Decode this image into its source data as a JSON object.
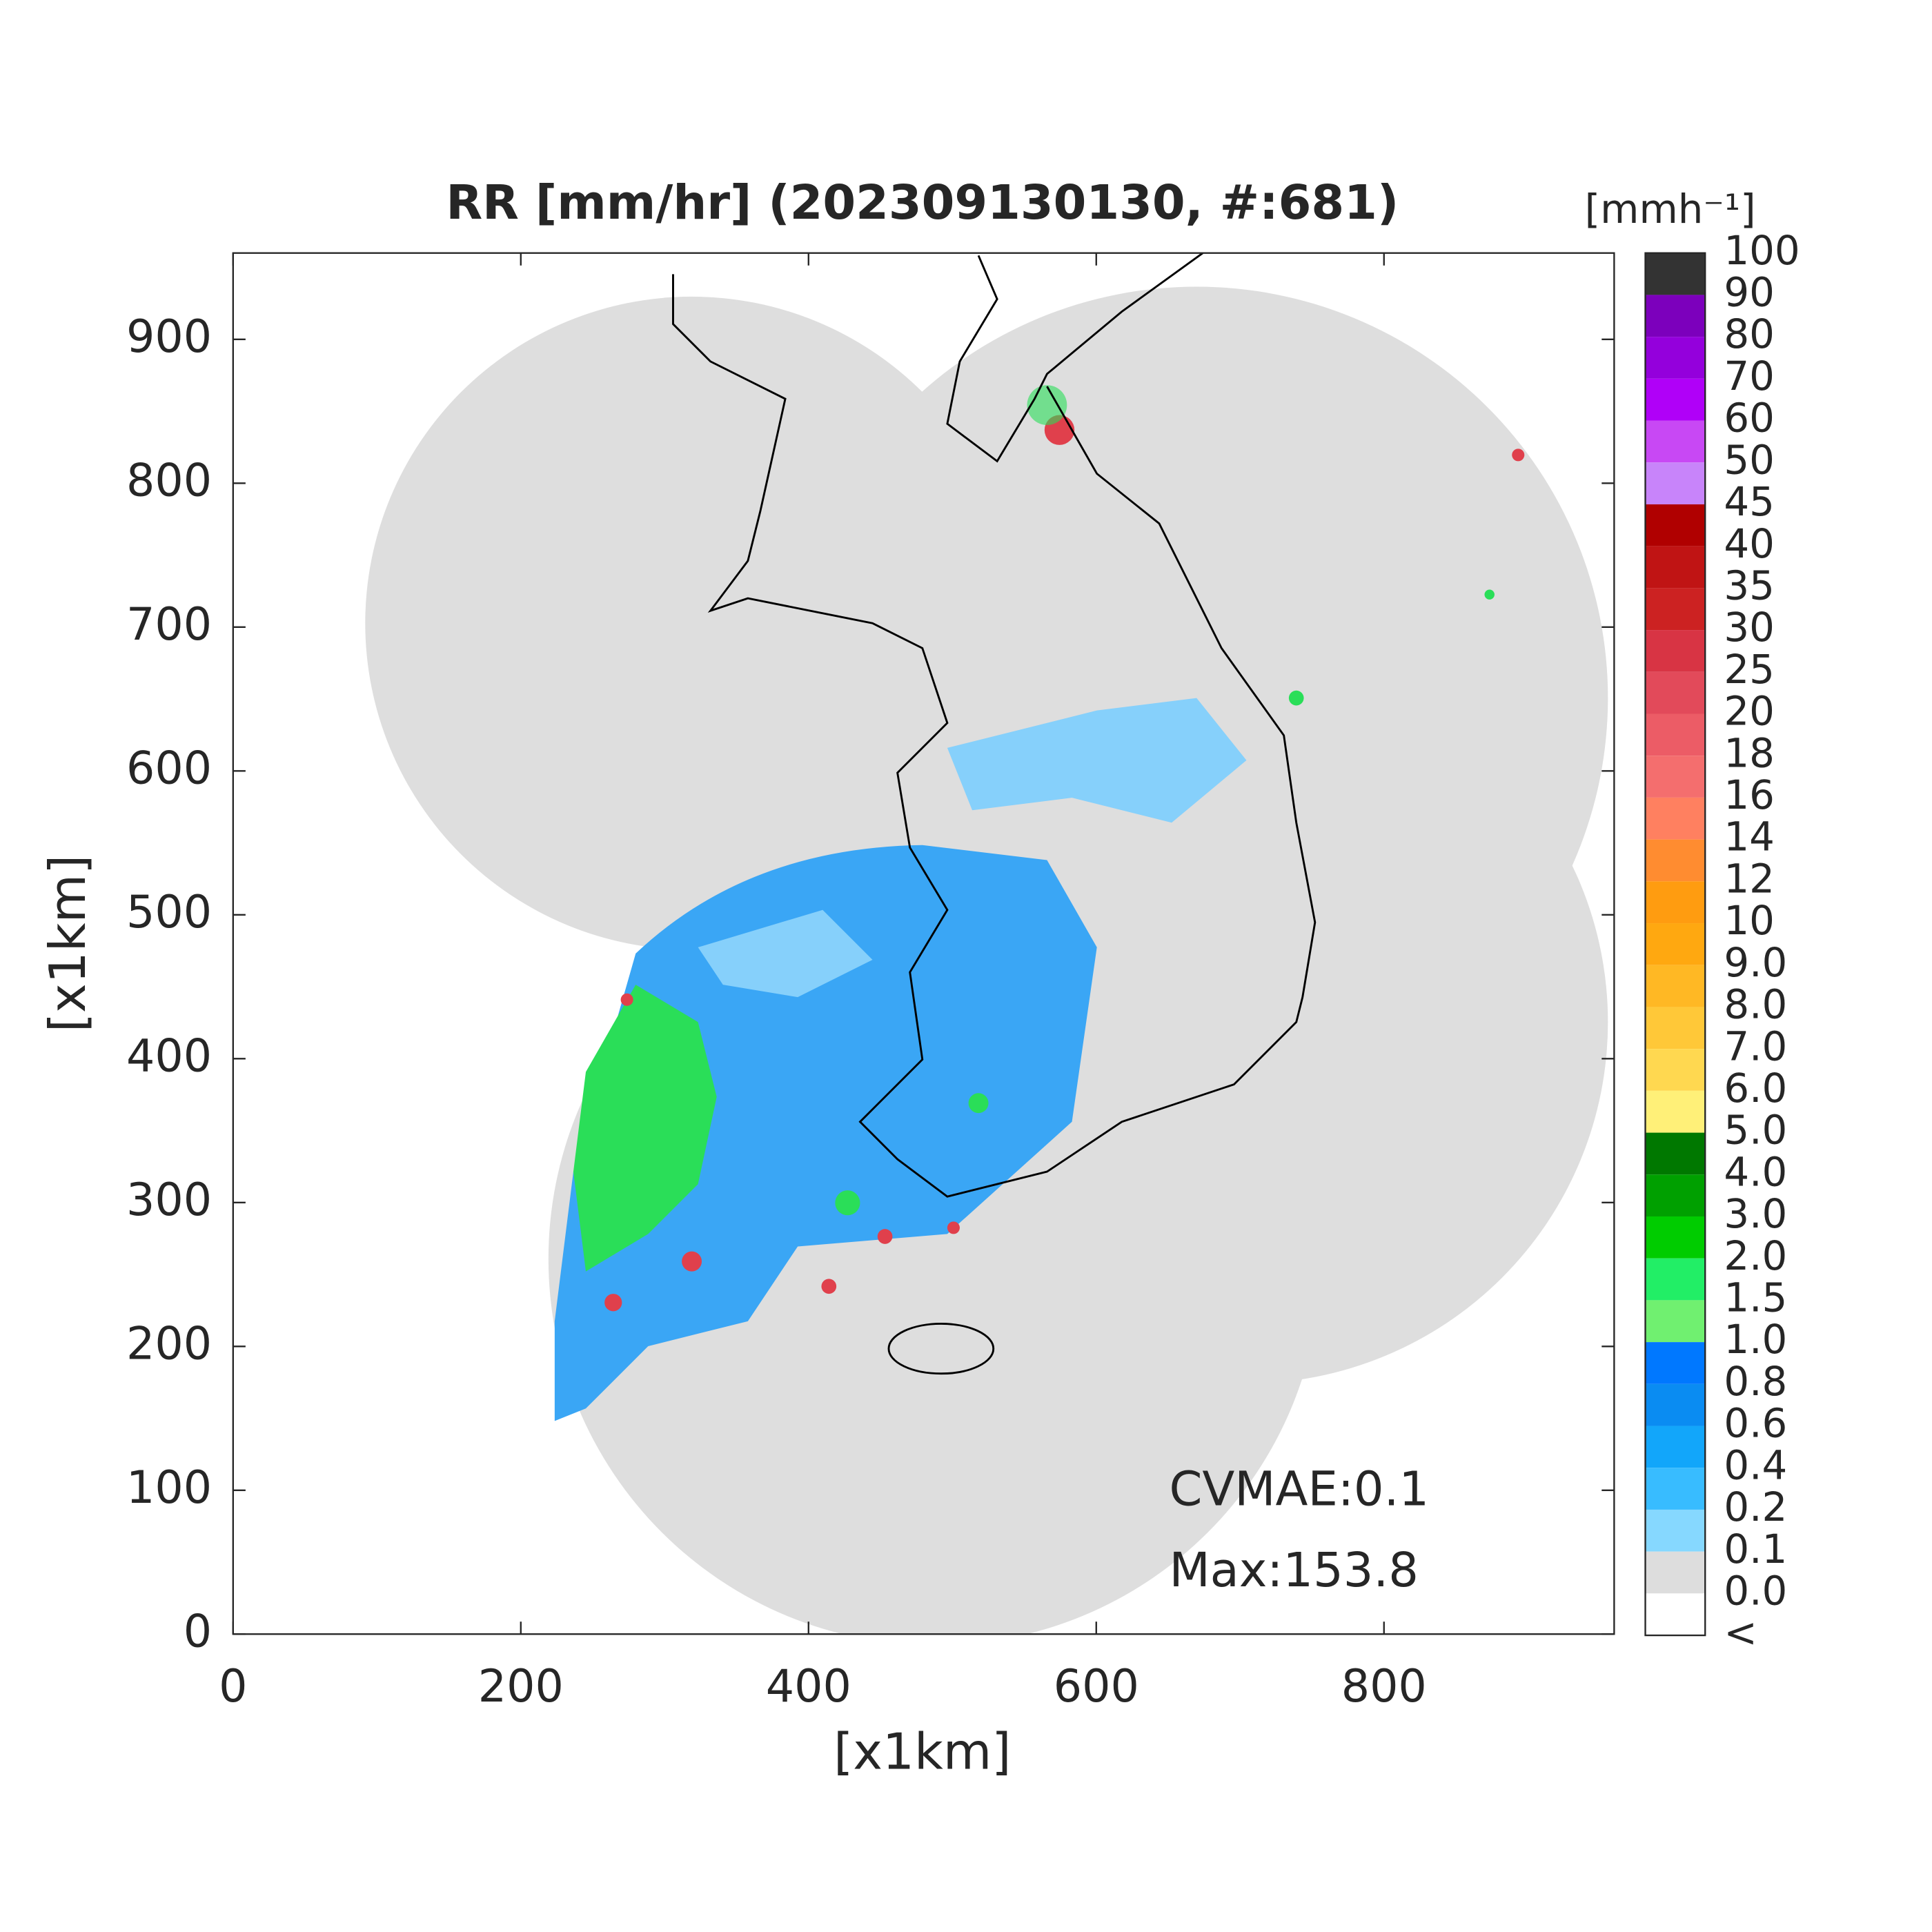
{
  "chart_data": {
    "type": "map",
    "title": "RR [mm/hr] (202309130130, #:681)",
    "xlabel": "[x1km]",
    "ylabel": "[x1km]",
    "xlim": [
      0,
      960
    ],
    "ylim": [
      0,
      960
    ],
    "xticks": [
      0,
      200,
      400,
      600,
      800
    ],
    "yticks": [
      0,
      100,
      200,
      300,
      400,
      500,
      600,
      700,
      800,
      900
    ],
    "annotations": [
      "CVMAE:0.1",
      "Max:153.8"
    ],
    "colorbar": {
      "label": "[mmh⁻¹]",
      "tick_labels": [
        "100",
        "90",
        "80",
        "70",
        "60",
        "50",
        "45",
        "40",
        "35",
        "30",
        "25",
        "20",
        "18",
        "16",
        "14",
        "12",
        "10",
        "9.0",
        "8.0",
        "7.0",
        "6.0",
        "5.0",
        "4.0",
        "3.0",
        "2.0",
        "1.5",
        "1.0",
        "0.8",
        "0.6",
        "0.4",
        "0.2",
        "0.1",
        "0.0",
        "<"
      ],
      "colors": [
        "#333333",
        "#7c00bc",
        "#9400dc",
        "#b000f8",
        "#c848f4",
        "#c884fa",
        "#b00000",
        "#c01414",
        "#cc2222",
        "#d83444",
        "#e24a5a",
        "#ec5c66",
        "#f46e6e",
        "#ff8060",
        "#ff8c30",
        "#ff9c10",
        "#ffa810",
        "#ffb824",
        "#ffc838",
        "#ffd850",
        "#fff078",
        "#007800",
        "#00a000",
        "#00cc00",
        "#22ee66",
        "#70f070",
        "#0078ff",
        "#0a8cf2",
        "#12a6fa",
        "#38bcff",
        "#86d8ff",
        "#dddddd",
        "#ffffff"
      ]
    }
  }
}
